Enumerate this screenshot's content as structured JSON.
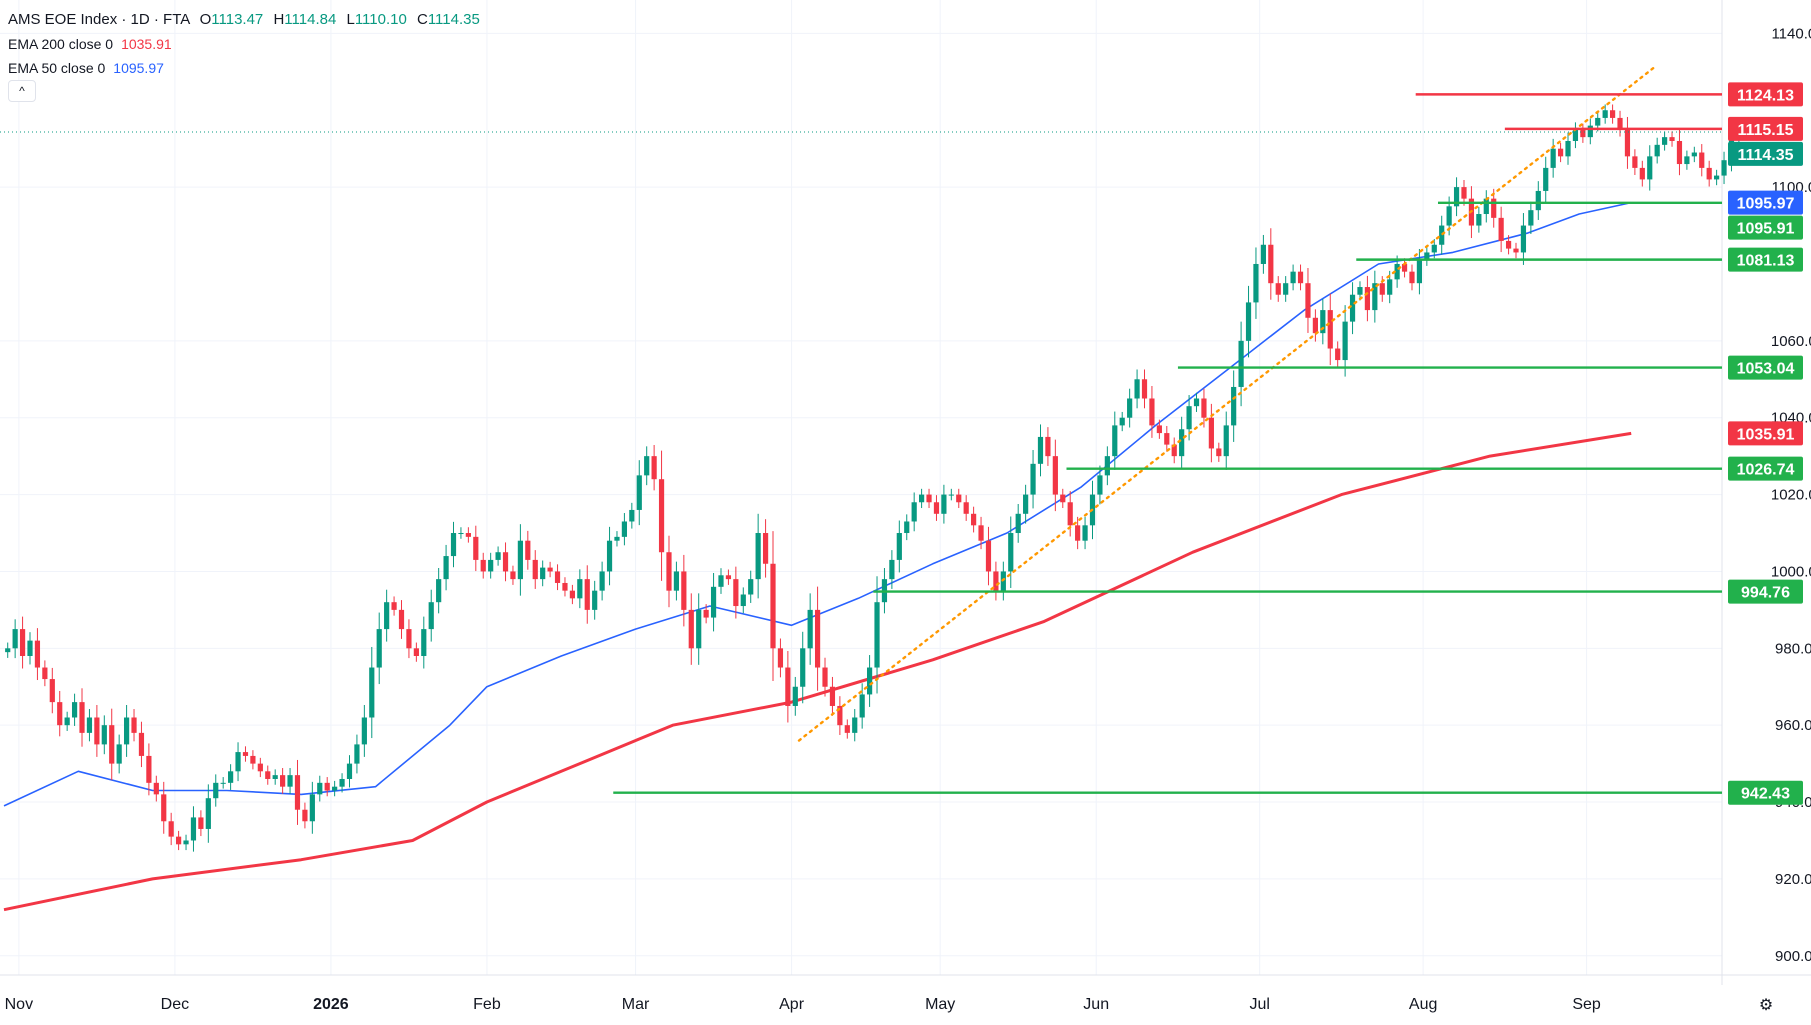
{
  "legend": {
    "symbol": "AMS EOE Index · 1D · FTA",
    "ohlc": [
      {
        "k": "O",
        "v": "1113.47"
      },
      {
        "k": "H",
        "v": "1114.84"
      },
      {
        "k": "L",
        "v": "1110.10"
      },
      {
        "k": "C",
        "v": "1114.35"
      }
    ],
    "ema200_label": "EMA 200 close 0",
    "ema200_value": "1035.91",
    "ema50_label": "EMA 50 close 0",
    "ema50_value": "1095.97",
    "collapse_glyph": "^"
  },
  "colors": {
    "up": "#089981",
    "down": "#f23645",
    "ema200": "#f23645",
    "ema50": "#2962ff",
    "support": "#22b14c",
    "resistance": "#f23645",
    "trend": "#ff9800"
  },
  "chart_data": {
    "type": "candlestick",
    "ylim": [
      895,
      1144
    ],
    "y_ticks": [
      "900.00",
      "920.00",
      "940.00",
      "960.00",
      "980.00",
      "1000.00",
      "1020.00",
      "1040.00",
      "1060.00",
      "1100.00",
      "1140.00"
    ],
    "x_labels": [
      {
        "label": "Nov",
        "bar": 2
      },
      {
        "label": "Dec",
        "bar": 23
      },
      {
        "label": "2026",
        "bar": 44
      },
      {
        "label": "Feb",
        "bar": 65
      },
      {
        "label": "Mar",
        "bar": 85
      },
      {
        "label": "Apr",
        "bar": 106
      },
      {
        "label": "May",
        "bar": 126
      },
      {
        "label": "Jun",
        "bar": 147
      },
      {
        "label": "Jul",
        "bar": 169
      },
      {
        "label": "Aug",
        "bar": 191
      },
      {
        "label": "Sep",
        "bar": 213
      }
    ],
    "closes": [
      980,
      985,
      978,
      982,
      975,
      972,
      966,
      960,
      962,
      966,
      958,
      962,
      955,
      960,
      950,
      955,
      962,
      958,
      952,
      945,
      942,
      935,
      931,
      929,
      930,
      936,
      933,
      941,
      945,
      945,
      948,
      953,
      952,
      950,
      948,
      946,
      947,
      944,
      947,
      938,
      935,
      942,
      945,
      943,
      944,
      946,
      950,
      955,
      962,
      975,
      985,
      992,
      990,
      985,
      980,
      978,
      985,
      992,
      998,
      1004,
      1010,
      1010,
      1009,
      1003,
      1000,
      1003,
      1005,
      1000,
      998,
      1008,
      1003,
      998,
      1001,
      1000,
      997,
      995,
      993,
      998,
      990,
      995,
      1000,
      1008,
      1009,
      1013,
      1016,
      1025,
      1030,
      1024,
      1005,
      995,
      1000,
      990,
      980,
      990,
      988,
      996,
      999,
      998,
      991,
      994,
      998,
      1010,
      1002,
      980,
      975,
      965,
      970,
      980,
      990,
      975,
      970,
      965,
      960,
      958,
      962,
      968,
      975,
      992,
      998,
      1003,
      1010,
      1013,
      1018,
      1020,
      1018,
      1015,
      1020,
      1020,
      1018,
      1015,
      1012,
      1008,
      1000,
      995,
      1000,
      1010,
      1015,
      1020,
      1028,
      1035,
      1030,
      1020,
      1018,
      1012,
      1008,
      1012,
      1020,
      1025,
      1030,
      1038,
      1040,
      1045,
      1050,
      1045,
      1038,
      1036,
      1033,
      1030,
      1037,
      1043,
      1045,
      1040,
      1032,
      1030,
      1038,
      1048,
      1060,
      1070,
      1080,
      1085,
      1075,
      1072,
      1075,
      1078,
      1075,
      1066,
      1062,
      1068,
      1058,
      1055,
      1065,
      1072,
      1074,
      1068,
      1075,
      1072,
      1076,
      1080,
      1078,
      1075,
      1081,
      1083,
      1085,
      1090,
      1095,
      1100,
      1097,
      1090,
      1093,
      1097,
      1092,
      1086,
      1084,
      1083,
      1090,
      1094,
      1099,
      1105,
      1110,
      1108,
      1112,
      1115,
      1113,
      1116,
      1118,
      1120,
      1118,
      1115,
      1108,
      1105,
      1102,
      1108,
      1111,
      1113,
      1112,
      1106,
      1108,
      1109,
      1105,
      1102,
      1103,
      1107,
      1113,
      1114.35
    ],
    "series": [
      {
        "name": "EMA 200 close 0",
        "value_label": "1035.91",
        "x": [
          0,
          20,
          40,
          55,
          65,
          75,
          90,
          106,
          125,
          140,
          160,
          180,
          200,
          219
        ],
        "values": [
          912,
          920,
          925,
          930,
          940,
          948,
          960,
          966,
          977,
          987,
          1005,
          1020,
          1030,
          1035.91
        ]
      },
      {
        "name": "EMA 50 close 0",
        "value_label": "1095.97",
        "x": [
          0,
          10,
          20,
          30,
          40,
          50,
          60,
          65,
          75,
          85,
          95,
          106,
          115,
          125,
          135,
          145,
          155,
          165,
          175,
          185,
          195,
          205,
          212,
          219
        ],
        "values": [
          939,
          948,
          943,
          943,
          942,
          944,
          960,
          970,
          978,
          985,
          991,
          986,
          993,
          1002,
          1010,
          1022,
          1038,
          1053,
          1068,
          1080,
          1083,
          1088,
          1093,
          1095.97
        ]
      }
    ],
    "levels": [
      {
        "label": "1124.13",
        "value": 1124.13,
        "kind": "resistance",
        "from_bar": 190
      },
      {
        "label": "1115.15",
        "value": 1115.15,
        "kind": "resistance",
        "from_bar": 202
      },
      {
        "label": "1095.91",
        "value": 1095.91,
        "kind": "support",
        "from_bar": 193
      },
      {
        "label": "1081.13",
        "value": 1081.13,
        "kind": "support",
        "from_bar": 182
      },
      {
        "label": "1053.04",
        "value": 1053.04,
        "kind": "support",
        "from_bar": 158
      },
      {
        "label": "1026.74",
        "value": 1026.74,
        "kind": "support",
        "from_bar": 143
      },
      {
        "label": "994.76",
        "value": 994.76,
        "kind": "support",
        "from_bar": 117
      },
      {
        "label": "942.43",
        "value": 942.43,
        "kind": "support",
        "from_bar": 82
      }
    ],
    "price_tags": [
      {
        "label": "1124.13",
        "value": 1124.13,
        "color": "#f23645"
      },
      {
        "label": "1115.15",
        "value": 1115.15,
        "color": "#f23645"
      },
      {
        "label": "1114.35",
        "value": 1114.35,
        "color": "#089981"
      },
      {
        "label": "1095.97",
        "value": 1095.97,
        "color": "#2962ff"
      },
      {
        "label": "1095.91",
        "value": 1095.91,
        "color": "#22b14c"
      },
      {
        "label": "1081.13",
        "value": 1081.13,
        "color": "#22b14c"
      },
      {
        "label": "1053.04",
        "value": 1053.04,
        "color": "#22b14c"
      },
      {
        "label": "1035.91",
        "value": 1035.91,
        "color": "#f23645"
      },
      {
        "label": "1026.74",
        "value": 1026.74,
        "color": "#22b14c"
      },
      {
        "label": "994.76",
        "value": 994.76,
        "color": "#22b14c"
      },
      {
        "label": "942.43",
        "value": 942.43,
        "color": "#22b14c"
      }
    ],
    "trendline": {
      "from_bar": 107,
      "from_value": 956,
      "to_bar": 222,
      "to_value": 1131
    },
    "last_price": 1114.35,
    "grid": true
  }
}
